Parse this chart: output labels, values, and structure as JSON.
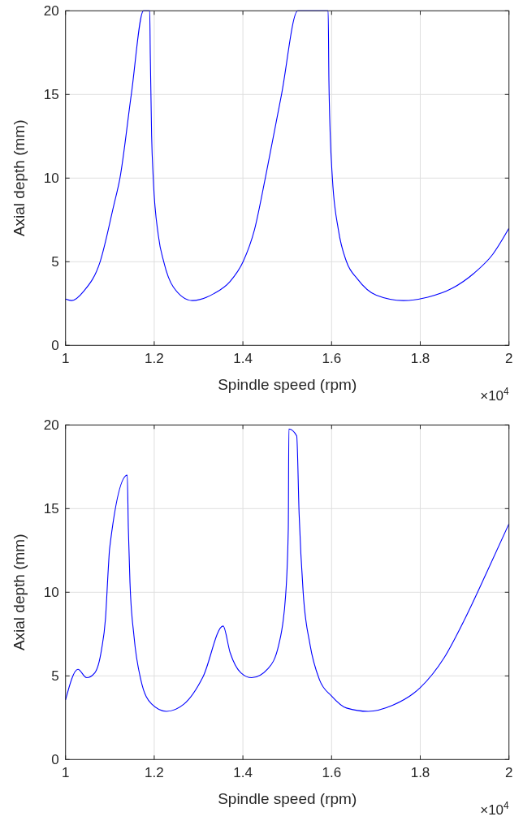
{
  "chart_data": [
    {
      "type": "line",
      "xlabel": "Spindle speed (rpm)",
      "ylabel": "Axial depth (mm)",
      "annotations": [
        "×10$^{4}$"
      ],
      "xlim": [
        1,
        2
      ],
      "ylim": [
        0,
        20
      ],
      "xticks": [
        1,
        1.2,
        1.4,
        1.6,
        1.8,
        2
      ],
      "yticks": [
        0,
        5,
        10,
        15,
        20
      ],
      "grid": true,
      "line_style": "solid",
      "series": [
        {
          "color": "#0000ff",
          "x": [
            1.0,
            1.0139,
            1.0414,
            1.078,
            1.1086,
            1.1227,
            1.1483,
            1.1758,
            1.1898,
            1.1911,
            1.1941,
            1.1978,
            1.2093,
            1.2215,
            1.2429,
            1.2857,
            1.3344,
            1.3711,
            1.4004,
            1.426,
            1.4505,
            1.4871,
            1.5238,
            1.5922,
            1.594,
            1.597,
            1.6018,
            1.6154,
            1.6337,
            1.6581,
            1.7008,
            1.7619,
            1.8168,
            1.8718,
            1.9206,
            1.9634,
            2.0
          ],
          "values": [
            2.77,
            2.68,
            3.25,
            5.0,
            8.35,
            10,
            15,
            20,
            20,
            17.4,
            12.55,
            10,
            6.57,
            5,
            3.5,
            2.68,
            3.09,
            3.82,
            5,
            6.9,
            10,
            15,
            20,
            20,
            15.8,
            12.55,
            10,
            6.9,
            5,
            3.98,
            3.0,
            2.68,
            2.88,
            3.41,
            4.3,
            5.44,
            7.0
          ]
        }
      ]
    },
    {
      "type": "line",
      "xlabel": "Spindle speed (rpm)",
      "ylabel": "Axial depth (mm)",
      "annotations": [
        "×10$^{4}$"
      ],
      "xlim": [
        1,
        2
      ],
      "ylim": [
        0,
        20
      ],
      "xticks": [
        1,
        1.2,
        1.4,
        1.6,
        1.8,
        2
      ],
      "yticks": [
        0,
        5,
        10,
        15,
        20
      ],
      "grid": true,
      "line_style": "solid",
      "series": [
        {
          "color": "#0000ff",
          "x": [
            1.0,
            1.028,
            1.0476,
            1.0659,
            1.0811,
            1.0903,
            1.0964,
            1.0995,
            1.1392,
            1.1416,
            1.1453,
            1.1544,
            1.1697,
            1.1941,
            1.2276,
            1.2674,
            1.31,
            1.3553,
            1.3711,
            1.3956,
            1.4199,
            1.4566,
            1.481,
            1.4963,
            1.5024,
            1.5037,
            1.5213,
            1.5268,
            1.536,
            1.5513,
            1.5726,
            1.6,
            1.6337,
            1.6825,
            1.7375,
            1.7998,
            1.8535,
            1.9023,
            1.9512,
            2.0
          ],
          "values": [
            3.56,
            5.39,
            4.89,
            5.18,
            6.56,
            8.5,
            11.4,
            12.63,
            17.0,
            13.85,
            10.6,
            7.37,
            4.78,
            3.32,
            2.88,
            3.32,
            4.94,
            7.98,
            6.4,
            5.18,
            4.89,
            5.43,
            6.88,
            9.8,
            13.85,
            19.76,
            19.35,
            14.66,
            9.96,
            6.88,
            4.78,
            3.8,
            3.08,
            2.88,
            3.24,
            4.29,
            6.07,
            8.5,
            11.26,
            14.09
          ]
        }
      ]
    }
  ]
}
